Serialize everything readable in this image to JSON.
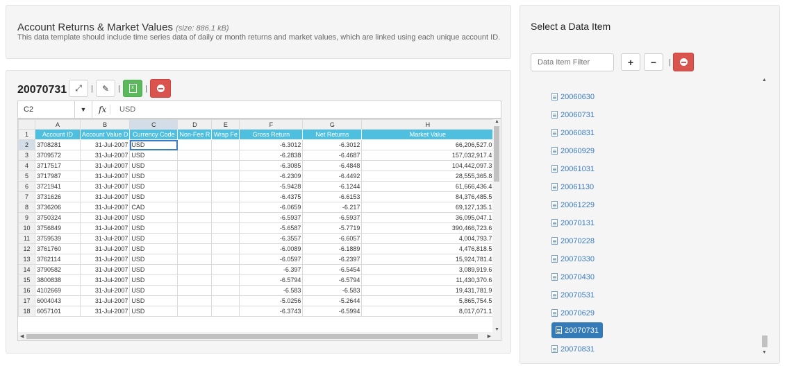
{
  "info": {
    "title": "Account Returns & Market Values",
    "size": "(size: 886.1 kB)",
    "description": "This data template should include time series data of daily or month returns and market values, which are linked using each unique account ID."
  },
  "dataset": {
    "title": "20070731",
    "separator": "|",
    "cell_ref": "C2",
    "formula_value": "USD",
    "fx_label": "fx",
    "columns": [
      "A",
      "B",
      "C",
      "D",
      "E",
      "F",
      "G",
      "H"
    ],
    "headers": [
      "Account ID",
      "Account Value D",
      "Currency Code",
      "Non-Fee R",
      "Wrap Fe",
      "Gross Return",
      "Net Returns",
      "Market Value"
    ],
    "rows": [
      {
        "n": "2",
        "cells": [
          "3708281",
          "31-Jul-2007",
          "USD",
          "",
          "",
          "-6.3012",
          "-6.3012",
          "66,206,527.0"
        ]
      },
      {
        "n": "3",
        "cells": [
          "3709572",
          "31-Jul-2007",
          "USD",
          "",
          "",
          "-6.2838",
          "-6.4687",
          "157,032,917.4"
        ]
      },
      {
        "n": "4",
        "cells": [
          "3717517",
          "31-Jul-2007",
          "USD",
          "",
          "",
          "-6.3085",
          "-6.4848",
          "104,442,097.3"
        ]
      },
      {
        "n": "5",
        "cells": [
          "3717987",
          "31-Jul-2007",
          "USD",
          "",
          "",
          "-6.2309",
          "-6.4492",
          "28,555,365.8"
        ]
      },
      {
        "n": "6",
        "cells": [
          "3721941",
          "31-Jul-2007",
          "USD",
          "",
          "",
          "-5.9428",
          "-6.1244",
          "61,666,436.4"
        ]
      },
      {
        "n": "7",
        "cells": [
          "3731626",
          "31-Jul-2007",
          "USD",
          "",
          "",
          "-6.4375",
          "-6.6153",
          "84,376,485.5"
        ]
      },
      {
        "n": "8",
        "cells": [
          "3736206",
          "31-Jul-2007",
          "CAD",
          "",
          "",
          "-6.0659",
          "-6.217",
          "69,127,135.1"
        ]
      },
      {
        "n": "9",
        "cells": [
          "3750324",
          "31-Jul-2007",
          "USD",
          "",
          "",
          "-6.5937",
          "-6.5937",
          "36,095,047.1"
        ]
      },
      {
        "n": "10",
        "cells": [
          "3756849",
          "31-Jul-2007",
          "USD",
          "",
          "",
          "-5.6587",
          "-5.7719",
          "390,466,723.6"
        ]
      },
      {
        "n": "11",
        "cells": [
          "3759539",
          "31-Jul-2007",
          "USD",
          "",
          "",
          "-6.3557",
          "-6.6057",
          "4,004,793.7"
        ]
      },
      {
        "n": "12",
        "cells": [
          "3761760",
          "31-Jul-2007",
          "USD",
          "",
          "",
          "-6.0089",
          "-6.1889",
          "4,476,818.5"
        ]
      },
      {
        "n": "13",
        "cells": [
          "3762114",
          "31-Jul-2007",
          "USD",
          "",
          "",
          "-6.0597",
          "-6.2397",
          "15,924,781.4"
        ]
      },
      {
        "n": "14",
        "cells": [
          "3790582",
          "31-Jul-2007",
          "USD",
          "",
          "",
          "-6.397",
          "-6.5454",
          "3,089,919.6"
        ]
      },
      {
        "n": "15",
        "cells": [
          "3800838",
          "31-Jul-2007",
          "USD",
          "",
          "",
          "-6.5794",
          "-6.5794",
          "11,430,370.6"
        ]
      },
      {
        "n": "16",
        "cells": [
          "4102669",
          "31-Jul-2007",
          "USD",
          "",
          "",
          "-6.583",
          "-6.583",
          "19,431,781.9"
        ]
      },
      {
        "n": "17",
        "cells": [
          "6004043",
          "31-Jul-2007",
          "USD",
          "",
          "",
          "-5.0256",
          "-5.2644",
          "5,865,754.5"
        ]
      },
      {
        "n": "18",
        "cells": [
          "6057101",
          "31-Jul-2007",
          "USD",
          "",
          "",
          "-6.3743",
          "-6.5994",
          "8,017,071.1"
        ]
      }
    ]
  },
  "side": {
    "title": "Select a Data Item",
    "filter_placeholder": "Data Item Filter",
    "plus": "+",
    "minus": "−",
    "separator": "|",
    "items": [
      "20060630",
      "20060731",
      "20060831",
      "20060929",
      "20061031",
      "20061130",
      "20061229",
      "20070131",
      "20070228",
      "20070330",
      "20070430",
      "20070531",
      "20070629",
      "20070731",
      "20070831"
    ],
    "active_item": "20070731"
  }
}
